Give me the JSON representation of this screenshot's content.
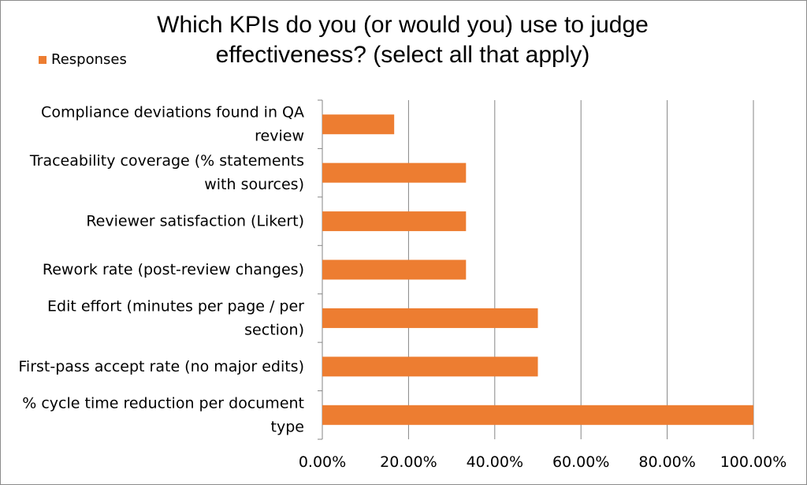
{
  "chart_data": {
    "type": "bar",
    "orientation": "horizontal",
    "title": "Which KPIs do you (or would you) use to judge effectiveness? (select all that apply)",
    "title_lines": [
      "Which KPIs do you (or would you) use to judge",
      "effectiveness? (select all that apply)"
    ],
    "categories": [
      [
        "Compliance deviations found in QA",
        "review"
      ],
      [
        "Traceability coverage (% statements",
        "with sources)"
      ],
      [
        "Reviewer satisfaction (Likert)"
      ],
      [
        "Rework rate (post-review changes)"
      ],
      [
        "Edit effort (minutes per page / per",
        "section)"
      ],
      [
        "First-pass accept rate (no major edits)"
      ],
      [
        "% cycle time reduction per document",
        "type"
      ]
    ],
    "series": [
      {
        "name": "Responses",
        "color": "#ED7D31",
        "values": [
          0.1667,
          0.3333,
          0.3333,
          0.3333,
          0.5,
          0.5,
          1.0
        ]
      }
    ],
    "xlim": [
      0,
      1
    ],
    "xticks": [
      0,
      0.2,
      0.4,
      0.6,
      0.8,
      1.0
    ],
    "xtick_labels": [
      "0.00%",
      "20.00%",
      "40.00%",
      "60.00%",
      "80.00%",
      "100.00%"
    ],
    "xlabel": "",
    "ylabel": "",
    "grid": "vertical",
    "legend_position": "top-left"
  }
}
